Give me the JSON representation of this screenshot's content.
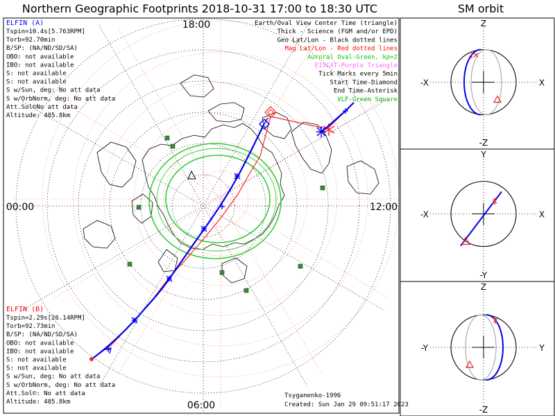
{
  "title": "Northern Geographic Footprints 2018-10-31 17:00 to 18:30 UTC",
  "side_title": "SM orbit",
  "map": {
    "clock_labels": {
      "top": "18:00",
      "left": "00:00",
      "right": "12:00",
      "bottom": "06:00"
    },
    "legend": [
      {
        "text": "Earth/Oval View Center Time (triangle)",
        "color": "#000000"
      },
      {
        "text": "Thick - Science (FGM and/or EPD)",
        "color": "#000000"
      },
      {
        "text": "Geo Lat/Lon - Black dotted lines",
        "color": "#000000"
      },
      {
        "text": "Mag Lat/Lon - Red dotted lines",
        "color": "#ff0000"
      },
      {
        "text": "Auroral Oval-Green, kp=2",
        "color": "#00cc00"
      },
      {
        "text": "EISCAT-Purple Triangle",
        "color": "#ff66ff"
      },
      {
        "text": "Tick Marks every 5min",
        "color": "#000000"
      },
      {
        "text": "Start Time-Diamond",
        "color": "#000000"
      },
      {
        "text": "End Time-Asterisk",
        "color": "#000000"
      },
      {
        "text": "VLF-Green Square",
        "color": "#00aa00"
      }
    ],
    "elfin_a": {
      "name": "ELFIN (A)",
      "color": "#0000ff",
      "lines": [
        "Tspin=10.4s[5.763RPM]",
        "Torb=92.70min",
        "B/SP: (NA/ND/SD/SA)",
        "OBO: not available",
        "IBO: not available",
        "S: not available",
        "S: not available",
        "S w/Sun, deg: No att data",
        "S w/OrbNorm, deg: No att data",
        "Att.Sol©No att data",
        "Altitude: 485.8km"
      ]
    },
    "elfin_b": {
      "name": "ELFIN (B)",
      "color": "#ff0000",
      "lines": [
        "Tspin=2.29s[26.14RPM]",
        "Torb=92.73min",
        "B/SP: (NA/ND/SD/SA)",
        "OBO: not available",
        "IBO: not available",
        "S: not available",
        "S: not available",
        "S w/Sun, deg: No att data",
        "S w/OrbNorm, deg: No att data",
        "Att.Sol©: No att data",
        "Altitude: 485.8km"
      ]
    },
    "credit": "Tsyganenko-1996",
    "created": "Created: Sun Jan 29 09:51:17 2023",
    "colors": {
      "orbit_a": "#0000ff",
      "orbit_b": "#ff0000",
      "oval": "#33cc33",
      "grid_geo": "#000000",
      "grid_mag": "#ff5555",
      "vlf": "#3a8a3a",
      "coast": "#000000"
    }
  },
  "panels": [
    {
      "top": "Z",
      "bottom": "-Z",
      "left": "-X",
      "right": "X"
    },
    {
      "top": "Y",
      "bottom": "-Y",
      "left": "-X",
      "right": "X"
    },
    {
      "top": "Z",
      "bottom": "-Z",
      "left": "-Y",
      "right": "Y"
    }
  ]
}
